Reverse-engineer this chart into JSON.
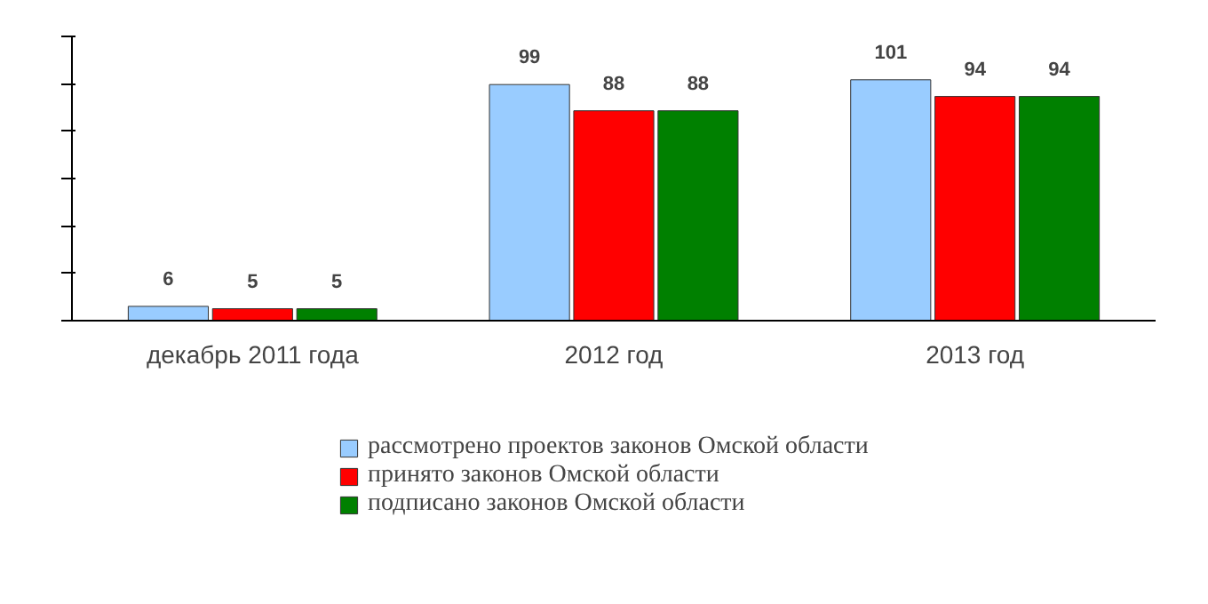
{
  "chart_data": {
    "type": "bar",
    "categories": [
      "декабрь 2011 года",
      "2012 год",
      "2013 год"
    ],
    "series": [
      {
        "name": "рассмотрено проектов законов Омской области",
        "color": "#99ccff",
        "values": [
          6,
          99,
          101
        ]
      },
      {
        "name": "принято законов Омской области",
        "color": "#ff0000",
        "values": [
          5,
          88,
          94
        ]
      },
      {
        "name": "подписано законов Омской области",
        "color": "#008000",
        "values": [
          5,
          88,
          94
        ]
      }
    ],
    "data_labels": true,
    "grid": false,
    "legend": "bottom",
    "tick_labels": "x"
  }
}
